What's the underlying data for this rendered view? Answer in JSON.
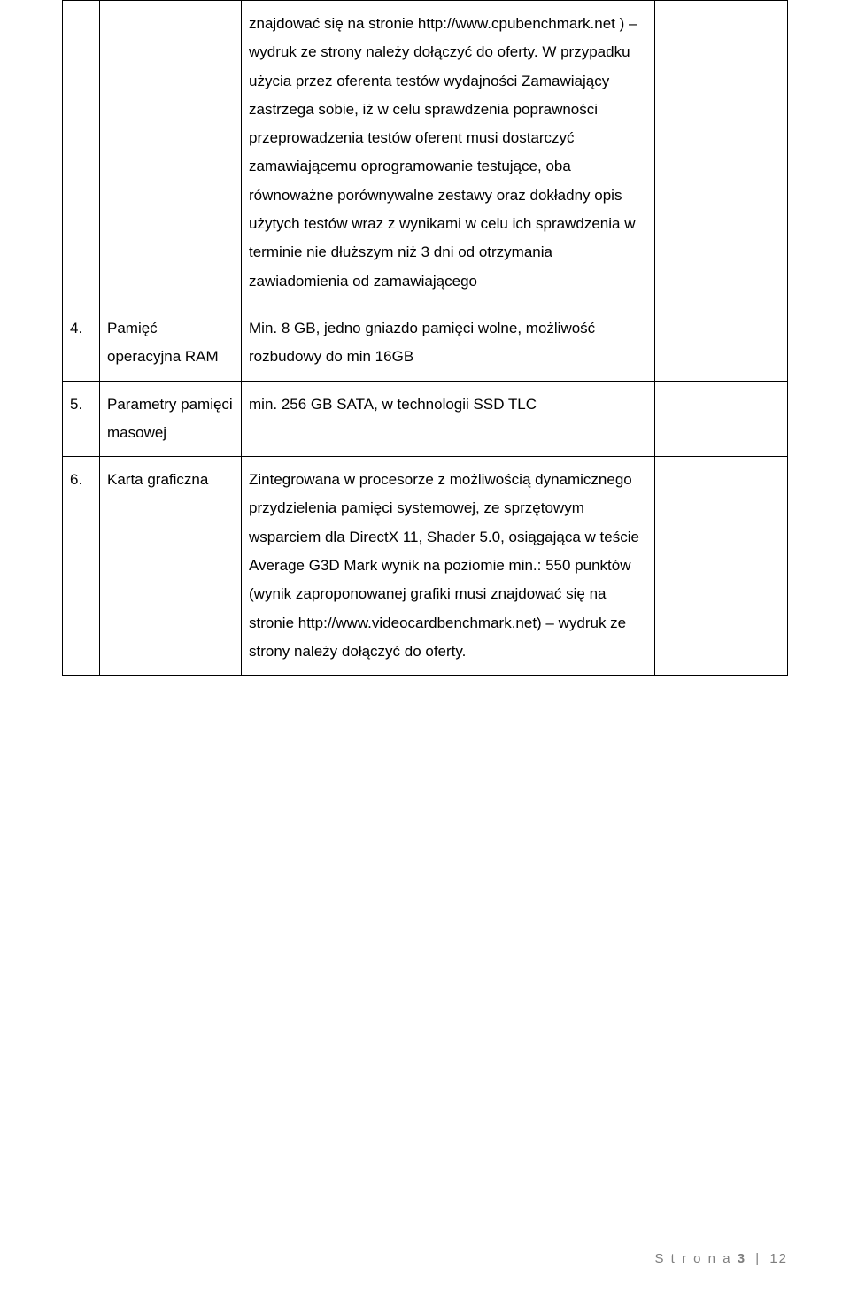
{
  "page": {
    "background_color": "#ffffff",
    "border_color": "#000000",
    "text_color": "#000000",
    "font_size_pt": 12,
    "line_height": 1.9,
    "footer_color": "#7e7e7e"
  },
  "rows": [
    {
      "num": "",
      "label": "",
      "desc": "znajdować się na stronie http://www.cpubenchmark.net ) – wydruk ze strony należy dołączyć do oferty. W przypadku użycia przez oferenta testów wydajności Zamawiający zastrzega sobie, iż w celu sprawdzenia poprawności przeprowadzenia testów oferent musi dostarczyć zamawiającemu oprogramowanie testujące, oba równoważne porównywalne zestawy oraz dokładny opis użytych testów wraz z wynikami w celu ich sprawdzenia w terminie nie dłuższym niż 3 dni od otrzymania zawiadomienia od zamawiającego",
      "empty": ""
    },
    {
      "num": "4.",
      "label": "Pamięć operacyjna RAM",
      "desc": "Min. 8 GB, jedno gniazdo pamięci wolne, możliwość rozbudowy do min 16GB",
      "empty": ""
    },
    {
      "num": "5.",
      "label": "Parametry pamięci masowej",
      "desc": "min. 256 GB SATA, w technologii SSD TLC",
      "empty": ""
    },
    {
      "num": "6.",
      "label": "Karta graficzna",
      "desc": "Zintegrowana w procesorze z możliwością dynamicznego przydzielenia pamięci systemowej, ze sprzętowym wsparciem dla DirectX 11, Shader 5.0, osiągająca w teście Average G3D Mark wynik na poziomie min.: 550 punktów (wynik zaproponowanej grafiki musi znajdować się na stronie http://www.videocardbenchmark.net) – wydruk ze strony należy dołączyć do oferty.",
      "empty": ""
    }
  ],
  "footer": {
    "label": "S t r o n a",
    "current": "3",
    "sep": "|",
    "total": "12"
  }
}
